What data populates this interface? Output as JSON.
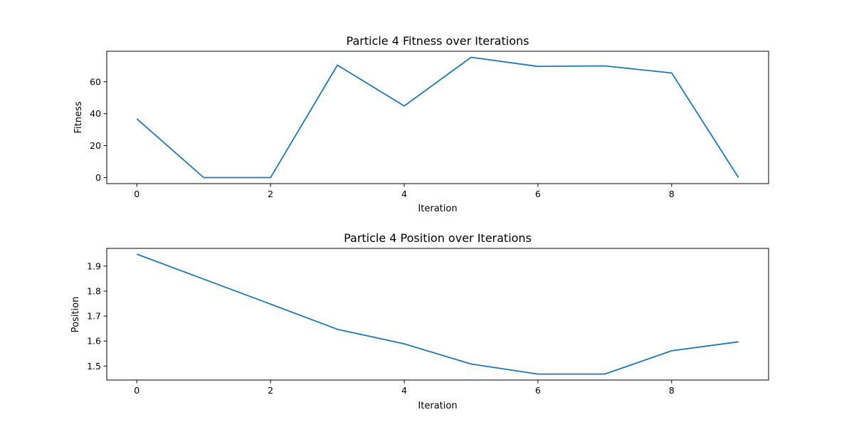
{
  "chart_data": [
    {
      "type": "line",
      "title": "Particle 4 Fitness over Iterations",
      "xlabel": "Iteration",
      "ylabel": "Fitness",
      "x": [
        0,
        1,
        2,
        3,
        4,
        5,
        6,
        7,
        8,
        9
      ],
      "series": [
        {
          "values": [
            36.8,
            0,
            0,
            70.4,
            44.8,
            75.3,
            69.6,
            69.9,
            65.5,
            0
          ],
          "color": "#1f77b4"
        }
      ],
      "xlim": [
        -0.45,
        9.45
      ],
      "ylim": [
        -3.77,
        79.07
      ],
      "xticks": [
        0,
        2,
        4,
        6,
        8
      ],
      "yticks": [
        0,
        20,
        40,
        60
      ],
      "xtick_labels": [
        "0",
        "2",
        "4",
        "6",
        "8"
      ],
      "ytick_labels": [
        "0",
        "20",
        "40",
        "60"
      ],
      "grid": false,
      "legend": "none"
    },
    {
      "type": "line",
      "title": "Particle 4 Position over Iterations",
      "xlabel": "Iteration",
      "ylabel": "Position",
      "x": [
        0,
        1,
        2,
        3,
        4,
        5,
        6,
        7,
        8,
        9
      ],
      "series": [
        {
          "values": [
            1.948,
            1.848,
            1.748,
            1.647,
            1.589,
            1.508,
            1.468,
            1.468,
            1.561,
            1.597
          ],
          "color": "#1f77b4"
        }
      ],
      "xlim": [
        -0.45,
        9.45
      ],
      "ylim": [
        1.444,
        1.971
      ],
      "xticks": [
        0,
        2,
        4,
        6,
        8
      ],
      "yticks": [
        1.5,
        1.6,
        1.7,
        1.8,
        1.9
      ],
      "xtick_labels": [
        "0",
        "2",
        "4",
        "6",
        "8"
      ],
      "ytick_labels": [
        "1.5",
        "1.6",
        "1.7",
        "1.8",
        "1.9"
      ],
      "grid": false,
      "legend": "none"
    }
  ]
}
